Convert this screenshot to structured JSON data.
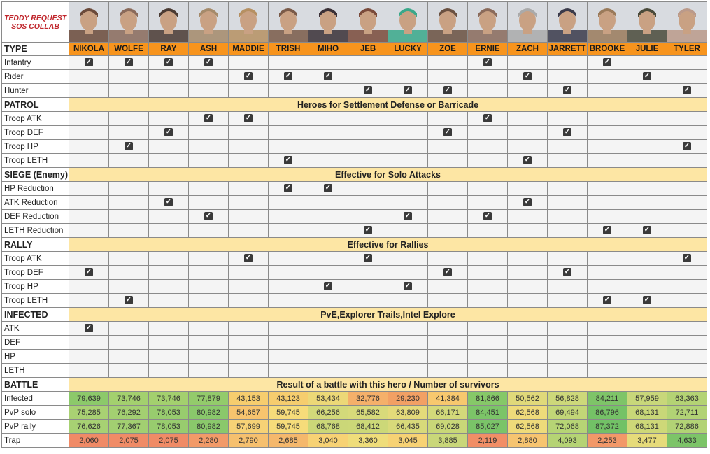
{
  "title_line1": "TEDDY REQUEST",
  "title_line2": "SOS COLLAB",
  "type_label": "TYPE",
  "heroes": [
    "NIKOLA",
    "WOLFE",
    "RAY",
    "ASH",
    "MADDIE",
    "TRISH",
    "MIHO",
    "JEB",
    "LUCKY",
    "ZOE",
    "ERNIE",
    "ZACH",
    "JARRETT",
    "BROOKE",
    "JULIE",
    "TYLER"
  ],
  "portrait_colors": [
    "#6b4a3a",
    "#8a6a5a",
    "#4a3a32",
    "#a58a6a",
    "#b69062",
    "#7a5a48",
    "#3a3036",
    "#7a4a3a",
    "#3aa88a",
    "#6a5040",
    "#8a6a5a",
    "#aaaaaa",
    "#3a3a4a",
    "#9a7a5a",
    "#4a4a3a",
    "#bb9a8a"
  ],
  "check_glyph": "✓",
  "type_rows": [
    {
      "label": "Infantry",
      "checks": [
        1,
        1,
        1,
        1,
        0,
        0,
        0,
        0,
        0,
        0,
        1,
        0,
        0,
        1,
        0,
        0
      ]
    },
    {
      "label": "Rider",
      "checks": [
        0,
        0,
        0,
        0,
        1,
        1,
        1,
        0,
        0,
        0,
        0,
        1,
        0,
        0,
        1,
        0
      ]
    },
    {
      "label": "Hunter",
      "checks": [
        0,
        0,
        0,
        0,
        0,
        0,
        0,
        1,
        1,
        1,
        0,
        0,
        1,
        0,
        0,
        1
      ]
    }
  ],
  "sections": [
    {
      "label": "PATROL",
      "banner": "Heroes for Settlement Defense or Barricade",
      "rows": [
        {
          "label": "Troop ATK",
          "checks": [
            0,
            0,
            0,
            1,
            1,
            0,
            0,
            0,
            0,
            0,
            1,
            0,
            0,
            0,
            0,
            0
          ]
        },
        {
          "label": "Troop DEF",
          "checks": [
            0,
            0,
            1,
            0,
            0,
            0,
            0,
            0,
            0,
            1,
            0,
            0,
            1,
            0,
            0,
            0
          ]
        },
        {
          "label": "Troop HP",
          "checks": [
            0,
            1,
            0,
            0,
            0,
            0,
            0,
            0,
            0,
            0,
            0,
            0,
            0,
            0,
            0,
            1
          ]
        },
        {
          "label": "Troop LETH",
          "checks": [
            0,
            0,
            0,
            0,
            0,
            1,
            0,
            0,
            0,
            0,
            0,
            1,
            0,
            0,
            0,
            0
          ]
        }
      ]
    },
    {
      "label": "SIEGE (Enemy)",
      "banner": "Effective for Solo Attacks",
      "rows": [
        {
          "label": "HP  Reduction",
          "checks": [
            0,
            0,
            0,
            0,
            0,
            1,
            1,
            0,
            0,
            0,
            0,
            0,
            0,
            0,
            0,
            0
          ]
        },
        {
          "label": "ATK Reduction",
          "checks": [
            0,
            0,
            1,
            0,
            0,
            0,
            0,
            0,
            0,
            0,
            0,
            1,
            0,
            0,
            0,
            0
          ]
        },
        {
          "label": "DEF Reduction",
          "checks": [
            0,
            0,
            0,
            1,
            0,
            0,
            0,
            0,
            1,
            0,
            1,
            0,
            0,
            0,
            0,
            0
          ]
        },
        {
          "label": "LETH Reduction",
          "checks": [
            0,
            0,
            0,
            0,
            0,
            0,
            0,
            1,
            0,
            0,
            0,
            0,
            0,
            1,
            1,
            0
          ]
        }
      ]
    },
    {
      "label": "RALLY",
      "banner": "Effective for Rallies",
      "rows": [
        {
          "label": "Troop ATK",
          "checks": [
            0,
            0,
            0,
            0,
            1,
            0,
            0,
            1,
            0,
            0,
            0,
            0,
            0,
            0,
            0,
            1
          ]
        },
        {
          "label": "Troop DEF",
          "checks": [
            1,
            0,
            0,
            0,
            0,
            0,
            0,
            0,
            0,
            1,
            0,
            0,
            1,
            0,
            0,
            0
          ]
        },
        {
          "label": "Troop HP",
          "checks": [
            0,
            0,
            0,
            0,
            0,
            0,
            1,
            0,
            1,
            0,
            0,
            0,
            0,
            0,
            0,
            0
          ]
        },
        {
          "label": "Troop LETH",
          "checks": [
            0,
            1,
            0,
            0,
            0,
            0,
            0,
            0,
            0,
            0,
            0,
            0,
            0,
            1,
            1,
            0
          ]
        }
      ]
    },
    {
      "label": "INFECTED",
      "banner": "PvE,Explorer Trails,Intel Explore",
      "rows": [
        {
          "label": "ATK",
          "checks": [
            1,
            0,
            0,
            0,
            0,
            0,
            0,
            0,
            0,
            0,
            0,
            0,
            0,
            0,
            0,
            0
          ]
        },
        {
          "label": "DEF",
          "checks": [
            0,
            0,
            0,
            0,
            0,
            0,
            0,
            0,
            0,
            0,
            0,
            0,
            0,
            0,
            0,
            0
          ]
        },
        {
          "label": "HP",
          "checks": [
            0,
            0,
            0,
            0,
            0,
            0,
            0,
            0,
            0,
            0,
            0,
            0,
            0,
            0,
            0,
            0
          ]
        },
        {
          "label": "LETH",
          "checks": [
            0,
            0,
            0,
            0,
            0,
            0,
            0,
            0,
            0,
            0,
            0,
            0,
            0,
            0,
            0,
            0
          ]
        }
      ]
    }
  ],
  "battle": {
    "label": "BATTLE",
    "banner": "Result of a battle with this hero / Number of survivors",
    "rows": [
      {
        "label": "Infected",
        "values": [
          "79,639",
          "73,746",
          "73,746",
          "77,879",
          "43,153",
          "43,123",
          "53,434",
          "32,776",
          "29,230",
          "41,384",
          "81,866",
          "50,562",
          "56,828",
          "84,211",
          "57,959",
          "63,363"
        ],
        "colors": [
          "#8cc96a",
          "#a3d06e",
          "#a3d06e",
          "#93cb6b",
          "#f6cd6e",
          "#f6cd6e",
          "#ecd877",
          "#f4b06a",
          "#f2a064",
          "#f7c86e",
          "#86c868",
          "#e0d97a",
          "#cdd87a",
          "#7ec468",
          "#c8d77a",
          "#b4d374"
        ]
      },
      {
        "label": "PvP solo",
        "values": [
          "75,285",
          "76,292",
          "78,053",
          "80,982",
          "54,657",
          "59,745",
          "66,256",
          "65,582",
          "63,809",
          "66,171",
          "84,451",
          "62,568",
          "69,494",
          "86,796",
          "68,131",
          "72,711"
        ],
        "colors": [
          "#a9d173",
          "#a3cf71",
          "#98cc6e",
          "#8ac86b",
          "#f7c46e",
          "#f6dc7a",
          "#d3d97a",
          "#d8da7a",
          "#e4da7a",
          "#d3d97a",
          "#7cc468",
          "#eedb7a",
          "#c2d677",
          "#75c266",
          "#c8d778",
          "#b2d375"
        ]
      },
      {
        "label": "PvP rally",
        "values": [
          "76,626",
          "77,367",
          "78,053",
          "80,982",
          "57,699",
          "59,745",
          "68,768",
          "68,412",
          "66,435",
          "69,028",
          "85,027",
          "62,568",
          "72,068",
          "87,372",
          "68,131",
          "72,886"
        ],
        "colors": [
          "#a7d173",
          "#a2cf71",
          "#98cc6e",
          "#8ac86b",
          "#f6d276",
          "#f6dc7a",
          "#cbd778",
          "#ccd878",
          "#d8da7a",
          "#c9d778",
          "#7ac468",
          "#eedb7a",
          "#b6d475",
          "#72c166",
          "#ced878",
          "#b2d375"
        ]
      },
      {
        "label": "Trap",
        "values": [
          "2,060",
          "2,075",
          "2,075",
          "2,280",
          "2,790",
          "2,685",
          "3,040",
          "3,360",
          "3,045",
          "3,885",
          "2,119",
          "2,880",
          "4,093",
          "2,253",
          "3,477",
          "4,633"
        ],
        "colors": [
          "#f08a66",
          "#f08b66",
          "#f08b66",
          "#f29a68",
          "#f6c06e",
          "#f5b86c",
          "#f7d274",
          "#efdd7a",
          "#f7d274",
          "#c9d779",
          "#f18e66",
          "#f6c470",
          "#b5d374",
          "#f29868",
          "#e6db7a",
          "#7cc468"
        ]
      }
    ]
  }
}
